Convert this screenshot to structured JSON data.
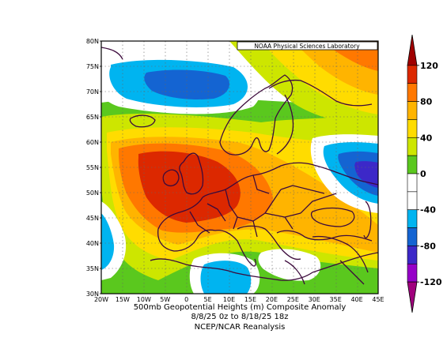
{
  "map": {
    "credit": "NOAA Physical Sciences Laboratory",
    "lat_labels": [
      "80N",
      "75N",
      "70N",
      "65N",
      "60N",
      "55N",
      "50N",
      "45N",
      "40N",
      "35N",
      "30N"
    ],
    "lon_labels": [
      "20W",
      "15W",
      "10W",
      "5W",
      "0",
      "5E",
      "10E",
      "15E",
      "20E",
      "25E",
      "30E",
      "35E",
      "40E",
      "45E"
    ],
    "lat_range": [
      30,
      80
    ],
    "lon_range": [
      -20,
      45
    ]
  },
  "colorbar": {
    "labels": [
      "120",
      "80",
      "40",
      "0",
      "-40",
      "-80",
      "-120"
    ],
    "colors": [
      "#a00000",
      "#dc2800",
      "#ff7800",
      "#ffb400",
      "#ffdc00",
      "#cde600",
      "#5ac81e",
      "#ffffff",
      "#ffffff",
      "#00b4f0",
      "#1464d2",
      "#3c28c8",
      "#9600c8",
      "#a0007d"
    ]
  },
  "caption": {
    "line1": "500mb Geopotential Heights (m)   Composite Anomaly",
    "line2": "8/8/25 0z  to 8/18/25 18z",
    "line3": "NCEP/NCAR Reanalysis"
  }
}
